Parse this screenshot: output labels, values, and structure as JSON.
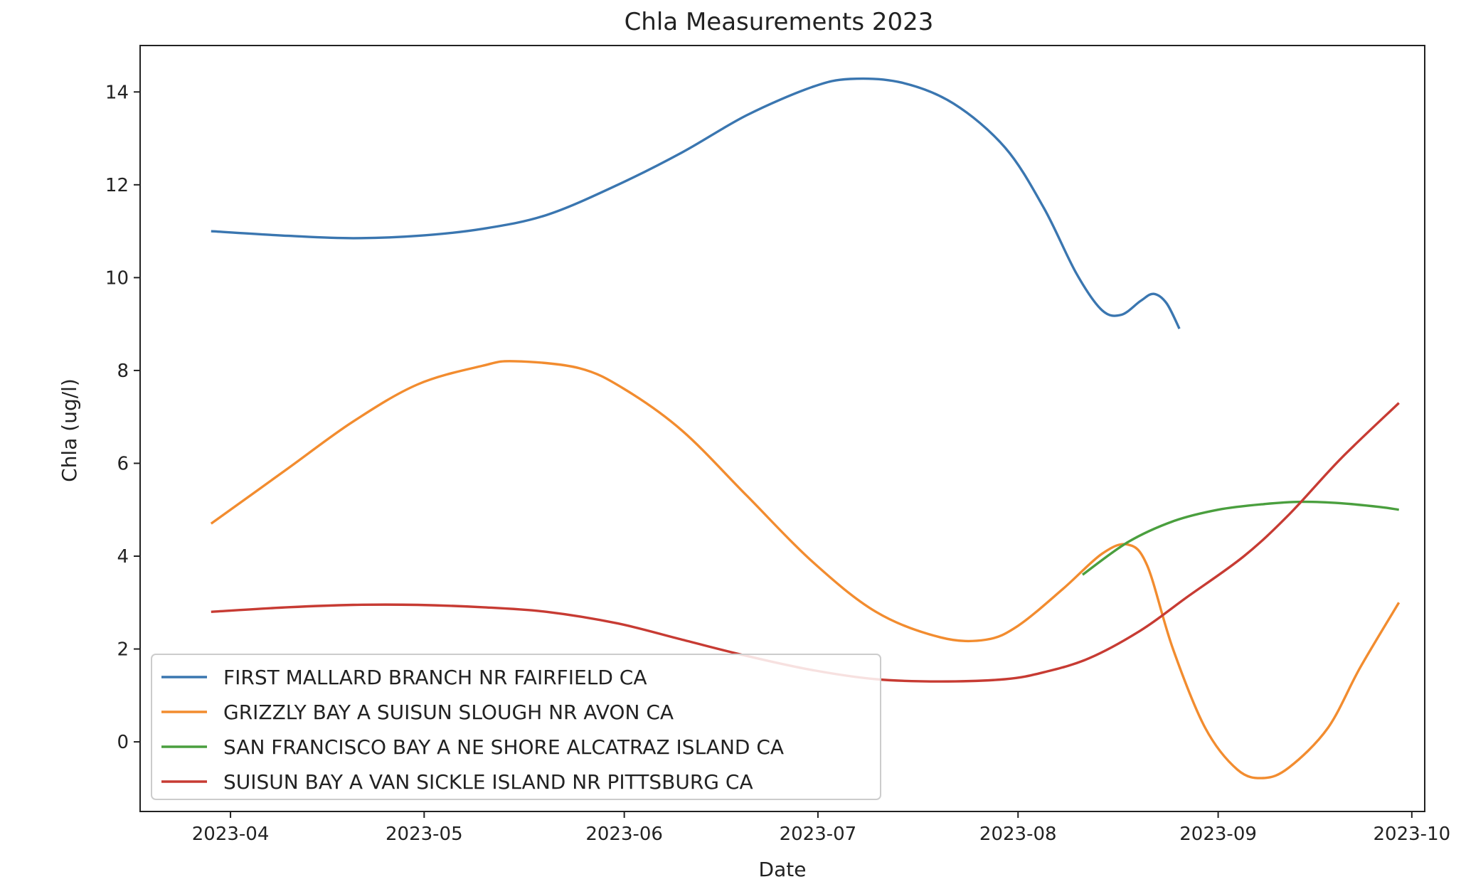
{
  "chart_data": {
    "type": "line",
    "title": "Chla Measurements 2023",
    "xlabel": "Date",
    "ylabel": "Chla (ug/l)",
    "xlim": [
      "2023-03-18",
      "2023-10-03"
    ],
    "ylim": [
      -1.5,
      15.0
    ],
    "x_ticks": [
      "2023-04-01",
      "2023-05-01",
      "2023-06-01",
      "2023-07-01",
      "2023-08-01",
      "2023-09-01",
      "2023-10-01"
    ],
    "x_tick_labels": [
      "2023-04",
      "2023-05",
      "2023-06",
      "2023-07",
      "2023-08",
      "2023-09",
      "2023-10"
    ],
    "y_ticks": [
      0,
      2,
      4,
      6,
      8,
      10,
      12,
      14
    ],
    "grid": false,
    "legend_position": "lower-left",
    "series": [
      {
        "name": "FIRST MALLARD BRANCH NR FAIRFIELD CA",
        "color": "#3a76b0",
        "points": [
          [
            "2023-03-29",
            11.0
          ],
          [
            "2023-04-10",
            10.9
          ],
          [
            "2023-04-20",
            10.85
          ],
          [
            "2023-04-30",
            10.9
          ],
          [
            "2023-05-10",
            11.05
          ],
          [
            "2023-05-20",
            11.35
          ],
          [
            "2023-05-31",
            12.0
          ],
          [
            "2023-06-10",
            12.7
          ],
          [
            "2023-06-20",
            13.5
          ],
          [
            "2023-06-30",
            14.1
          ],
          [
            "2023-07-06",
            14.28
          ],
          [
            "2023-07-14",
            14.2
          ],
          [
            "2023-07-22",
            13.75
          ],
          [
            "2023-07-30",
            12.8
          ],
          [
            "2023-08-05",
            11.5
          ],
          [
            "2023-08-10",
            10.1
          ],
          [
            "2023-08-14",
            9.3
          ],
          [
            "2023-08-17",
            9.2
          ],
          [
            "2023-08-20",
            9.5
          ],
          [
            "2023-08-22",
            9.65
          ],
          [
            "2023-08-24",
            9.45
          ],
          [
            "2023-08-26",
            8.9
          ]
        ]
      },
      {
        "name": "GRIZZLY BAY A SUISUN SLOUGH NR AVON CA",
        "color": "#f28c2f",
        "points": [
          [
            "2023-03-29",
            4.7
          ],
          [
            "2023-04-10",
            5.9
          ],
          [
            "2023-04-20",
            6.9
          ],
          [
            "2023-04-30",
            7.7
          ],
          [
            "2023-05-10",
            8.1
          ],
          [
            "2023-05-15",
            8.2
          ],
          [
            "2023-05-25",
            8.05
          ],
          [
            "2023-06-01",
            7.6
          ],
          [
            "2023-06-10",
            6.7
          ],
          [
            "2023-06-20",
            5.3
          ],
          [
            "2023-06-30",
            3.9
          ],
          [
            "2023-07-10",
            2.8
          ],
          [
            "2023-07-20",
            2.25
          ],
          [
            "2023-07-27",
            2.2
          ],
          [
            "2023-08-01",
            2.5
          ],
          [
            "2023-08-08",
            3.3
          ],
          [
            "2023-08-14",
            4.05
          ],
          [
            "2023-08-18",
            4.25
          ],
          [
            "2023-08-21",
            3.8
          ],
          [
            "2023-08-25",
            2.0
          ],
          [
            "2023-08-30",
            0.3
          ],
          [
            "2023-09-04",
            -0.6
          ],
          [
            "2023-09-08",
            -0.78
          ],
          [
            "2023-09-12",
            -0.55
          ],
          [
            "2023-09-18",
            0.3
          ],
          [
            "2023-09-23",
            1.6
          ],
          [
            "2023-09-29",
            3.0
          ]
        ]
      },
      {
        "name": "SAN FRANCISCO BAY A NE SHORE ALCATRAZ ISLAND CA",
        "color": "#4a9f3e",
        "points": [
          [
            "2023-08-11",
            3.6
          ],
          [
            "2023-08-18",
            4.3
          ],
          [
            "2023-08-25",
            4.75
          ],
          [
            "2023-09-01",
            5.0
          ],
          [
            "2023-09-08",
            5.12
          ],
          [
            "2023-09-14",
            5.17
          ],
          [
            "2023-09-20",
            5.14
          ],
          [
            "2023-09-26",
            5.06
          ],
          [
            "2023-09-29",
            5.0
          ]
        ]
      },
      {
        "name": "SUISUN BAY A VAN SICKLE ISLAND NR PITTSBURG CA",
        "color": "#c73b33",
        "points": [
          [
            "2023-03-29",
            2.8
          ],
          [
            "2023-04-10",
            2.9
          ],
          [
            "2023-04-20",
            2.95
          ],
          [
            "2023-04-30",
            2.95
          ],
          [
            "2023-05-10",
            2.9
          ],
          [
            "2023-05-20",
            2.8
          ],
          [
            "2023-05-31",
            2.55
          ],
          [
            "2023-06-10",
            2.2
          ],
          [
            "2023-06-20",
            1.85
          ],
          [
            "2023-06-30",
            1.55
          ],
          [
            "2023-07-10",
            1.35
          ],
          [
            "2023-07-20",
            1.3
          ],
          [
            "2023-07-30",
            1.35
          ],
          [
            "2023-08-05",
            1.5
          ],
          [
            "2023-08-12",
            1.8
          ],
          [
            "2023-08-20",
            2.4
          ],
          [
            "2023-08-27",
            3.1
          ],
          [
            "2023-09-05",
            4.0
          ],
          [
            "2023-09-12",
            4.9
          ],
          [
            "2023-09-20",
            6.1
          ],
          [
            "2023-09-29",
            7.3
          ]
        ]
      }
    ]
  }
}
